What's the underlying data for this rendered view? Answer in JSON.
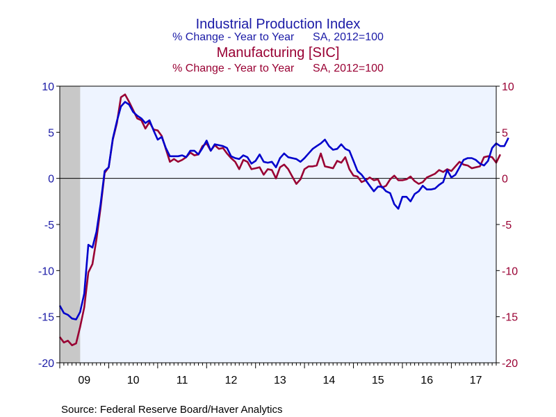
{
  "chart_data": {
    "type": "line",
    "titles": [
      {
        "text": "Industrial Production Index",
        "color": "#1a1aa6"
      },
      {
        "text": "% Change - Year to Year      SA, 2012=100",
        "color": "#1a1aa6"
      },
      {
        "text": "Manufacturing [SIC]",
        "color": "#990033"
      },
      {
        "text": "% Change - Year to Year      SA, 2012=100",
        "color": "#990033"
      }
    ],
    "source": "Source:  Federal Reserve Board/Haver Analytics",
    "ylim": [
      -20,
      10
    ],
    "yticks": [
      10,
      5,
      0,
      -5,
      -10,
      -15,
      -20
    ],
    "ytick_labels_left": [
      "10",
      "5",
      "0",
      "-5",
      "-10",
      "-15",
      "-20"
    ],
    "ytick_labels_right": [
      "10",
      "5",
      "0",
      "-5",
      "-10",
      "-15",
      "-20"
    ],
    "x_start": 2009.0,
    "x_end": 2017.917,
    "year_labels": [
      {
        "label": "09",
        "year": 2009
      },
      {
        "label": "10",
        "year": 2010
      },
      {
        "label": "11",
        "year": 2011
      },
      {
        "label": "12",
        "year": 2012
      },
      {
        "label": "13",
        "year": 2013
      },
      {
        "label": "14",
        "year": 2014
      },
      {
        "label": "15",
        "year": 2015
      },
      {
        "label": "16",
        "year": 2016
      },
      {
        "label": "17",
        "year": 2017
      }
    ],
    "recession": {
      "start": 2009.0,
      "end": 2009.417
    },
    "zero_line": 0,
    "colors": {
      "ip": "#0000cc",
      "mfg": "#990033",
      "plot_bg": "#eef4ff",
      "recession": "#c8c8c8"
    },
    "series": [
      {
        "name": "Industrial Production Index",
        "key": "ip",
        "start": 2009.0,
        "values": [
          -13.8,
          -14.6,
          -14.8,
          -15.2,
          -15.3,
          -14.5,
          -12.5,
          -7.2,
          -7.5,
          -5.8,
          -2.8,
          0.8,
          1.2,
          4.3,
          6.2,
          7.8,
          8.3,
          8.0,
          7.2,
          6.8,
          6.5,
          6.0,
          6.3,
          5.2,
          4.2,
          4.5,
          3.3,
          2.4,
          2.4,
          2.4,
          2.5,
          2.3,
          3.0,
          3.0,
          2.6,
          3.3,
          4.1,
          3.0,
          3.7,
          3.6,
          3.5,
          3.3,
          2.4,
          2.2,
          2.1,
          2.5,
          2.3,
          1.6,
          1.9,
          2.6,
          1.8,
          1.7,
          1.8,
          1.2,
          2.2,
          2.7,
          2.3,
          2.2,
          2.1,
          1.8,
          2.2,
          2.7,
          3.2,
          3.5,
          3.8,
          4.2,
          3.5,
          3.1,
          3.2,
          3.7,
          3.2,
          3.0,
          1.9,
          0.8,
          0.4,
          -0.2,
          -0.8,
          -1.4,
          -0.9,
          -0.9,
          -1.4,
          -1.6,
          -2.8,
          -3.3,
          -2.0,
          -2.0,
          -2.5,
          -1.7,
          -1.4,
          -0.8,
          -1.2,
          -1.2,
          -1.1,
          -0.7,
          -0.4,
          0.9,
          0.1,
          0.4,
          1.2,
          2.0,
          2.2,
          2.2,
          2.0,
          1.6,
          1.4,
          1.9,
          3.3,
          3.8,
          3.5,
          3.5,
          4.4
        ]
      },
      {
        "name": "Manufacturing [SIC]",
        "key": "mfg",
        "start": 2009.0,
        "values": [
          -17.2,
          -17.8,
          -17.6,
          -18.1,
          -17.9,
          -16.1,
          -14.0,
          -10.2,
          -9.3,
          -6.6,
          -3.2,
          0.6,
          1.2,
          4.2,
          6.0,
          8.8,
          9.1,
          8.3,
          7.4,
          6.5,
          6.3,
          5.4,
          6.1,
          5.3,
          5.2,
          4.6,
          3.2,
          1.8,
          2.1,
          1.8,
          2.0,
          2.3,
          2.8,
          2.5,
          2.6,
          3.5,
          3.8,
          3.0,
          3.6,
          3.2,
          3.3,
          2.7,
          2.2,
          1.8,
          1.0,
          2.0,
          1.8,
          1.0,
          1.1,
          1.2,
          0.4,
          1.0,
          0.9,
          0.0,
          1.2,
          1.5,
          1.0,
          0.2,
          -0.6,
          -0.1,
          1.0,
          1.3,
          1.3,
          1.4,
          2.7,
          1.3,
          1.2,
          1.1,
          1.9,
          1.7,
          2.3,
          1.0,
          0.3,
          0.2,
          -0.4,
          -0.2,
          0.1,
          -0.2,
          -0.1,
          -1.0,
          -0.8,
          -0.1,
          0.3,
          -0.2,
          -0.2,
          -0.1,
          0.2,
          -0.3,
          -0.6,
          -0.4,
          0.1,
          0.3,
          0.5,
          0.9,
          0.7,
          1.0,
          0.8,
          1.3,
          1.8,
          1.5,
          1.4,
          1.1,
          1.2,
          1.3,
          2.3,
          2.4,
          2.3,
          1.7,
          2.6
        ]
      }
    ]
  }
}
